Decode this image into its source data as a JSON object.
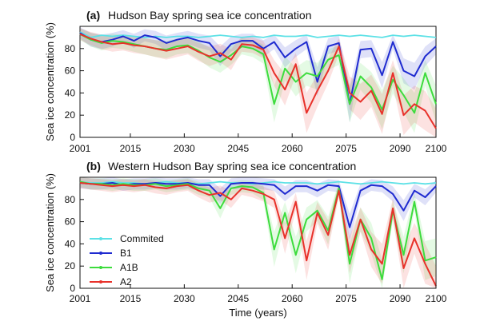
{
  "chart_data": [
    {
      "type": "line",
      "panel_label": "(a)",
      "title": "Hudson Bay spring sea ice concentration",
      "ylabel": "Sea ice concentration (%)",
      "xlabel": "",
      "xlim": [
        2001,
        2100
      ],
      "ylim": [
        0,
        100
      ],
      "xticks": [
        2001,
        2015,
        2030,
        2045,
        2060,
        2075,
        2090,
        2100
      ],
      "yticks": [
        0,
        20,
        40,
        60,
        80
      ],
      "x": [
        2001,
        2004,
        2007,
        2010,
        2013,
        2016,
        2019,
        2022,
        2025,
        2028,
        2031,
        2034,
        2037,
        2040,
        2043,
        2046,
        2049,
        2052,
        2055,
        2058,
        2061,
        2064,
        2067,
        2070,
        2073,
        2076,
        2079,
        2082,
        2085,
        2088,
        2091,
        2094,
        2097,
        2100
      ],
      "series": [
        {
          "name": "Commited",
          "color": "#5ce1e6",
          "values": [
            95,
            90,
            92,
            91,
            92,
            91,
            90,
            91,
            90,
            91,
            91,
            90,
            91,
            92,
            91,
            90,
            91,
            90,
            92,
            91,
            91,
            92,
            90,
            91,
            92,
            91,
            92,
            91,
            90,
            92,
            91,
            92,
            91,
            90
          ]
        },
        {
          "name": "B1",
          "color": "#1f2bd0",
          "values": [
            94,
            88,
            86,
            88,
            91,
            87,
            92,
            90,
            85,
            88,
            90,
            87,
            85,
            73,
            84,
            87,
            87,
            80,
            86,
            72,
            80,
            86,
            50,
            82,
            85,
            30,
            79,
            80,
            56,
            86,
            60,
            55,
            73,
            82
          ]
        },
        {
          "name": "A1B",
          "color": "#3ddc3d",
          "values": [
            93,
            88,
            85,
            87,
            86,
            84,
            82,
            80,
            79,
            82,
            83,
            78,
            72,
            68,
            74,
            82,
            80,
            75,
            30,
            62,
            50,
            58,
            55,
            70,
            74,
            30,
            55,
            45,
            25,
            52,
            38,
            22,
            58,
            30
          ]
        },
        {
          "name": "A2",
          "color": "#e8312a",
          "values": [
            93,
            89,
            86,
            84,
            85,
            83,
            82,
            80,
            78,
            80,
            82,
            77,
            73,
            76,
            70,
            84,
            83,
            79,
            58,
            43,
            66,
            22,
            42,
            60,
            82,
            40,
            32,
            42,
            21,
            58,
            20,
            30,
            24,
            8
          ]
        }
      ]
    },
    {
      "type": "line",
      "panel_label": "(b)",
      "title": "Western Hudson Bay spring sea ice concentration",
      "ylabel": "Sea ice concentration (%)",
      "xlabel": "Time (years)",
      "xlim": [
        2001,
        2100
      ],
      "ylim": [
        0,
        100
      ],
      "xticks": [
        2001,
        2015,
        2030,
        2045,
        2060,
        2075,
        2090,
        2100
      ],
      "yticks": [
        0,
        20,
        40,
        60,
        80
      ],
      "x": [
        2001,
        2004,
        2007,
        2010,
        2013,
        2016,
        2019,
        2022,
        2025,
        2028,
        2031,
        2034,
        2037,
        2040,
        2043,
        2046,
        2049,
        2052,
        2055,
        2058,
        2061,
        2064,
        2067,
        2070,
        2073,
        2076,
        2079,
        2082,
        2085,
        2088,
        2091,
        2094,
        2097,
        2100
      ],
      "series": [
        {
          "name": "Commited",
          "color": "#5ce1e6",
          "values": [
            96,
            95,
            95,
            96,
            95,
            95,
            94,
            95,
            96,
            95,
            95,
            94,
            95,
            96,
            95,
            95,
            94,
            95,
            96,
            95,
            95,
            95,
            94,
            95,
            96,
            95,
            94,
            95,
            96,
            95,
            94,
            95,
            94,
            95
          ]
        },
        {
          "name": "B1",
          "color": "#1f2bd0",
          "values": [
            95,
            94,
            94,
            95,
            93,
            94,
            94,
            95,
            94,
            94,
            95,
            93,
            93,
            83,
            94,
            95,
            95,
            94,
            93,
            85,
            92,
            92,
            88,
            93,
            92,
            55,
            88,
            93,
            92,
            85,
            70,
            88,
            82,
            92
          ]
        },
        {
          "name": "A1B",
          "color": "#3ddc3d",
          "values": [
            96,
            94,
            94,
            93,
            94,
            93,
            93,
            94,
            92,
            93,
            94,
            90,
            88,
            72,
            90,
            92,
            91,
            86,
            35,
            68,
            30,
            62,
            70,
            52,
            90,
            22,
            62,
            45,
            8,
            70,
            30,
            78,
            25,
            28
          ]
        },
        {
          "name": "A2",
          "color": "#e8312a",
          "values": [
            95,
            94,
            93,
            92,
            93,
            92,
            93,
            91,
            90,
            92,
            93,
            88,
            84,
            86,
            80,
            90,
            88,
            85,
            80,
            45,
            78,
            25,
            68,
            48,
            88,
            30,
            62,
            35,
            22,
            72,
            18,
            45,
            22,
            2
          ]
        }
      ]
    }
  ]
}
